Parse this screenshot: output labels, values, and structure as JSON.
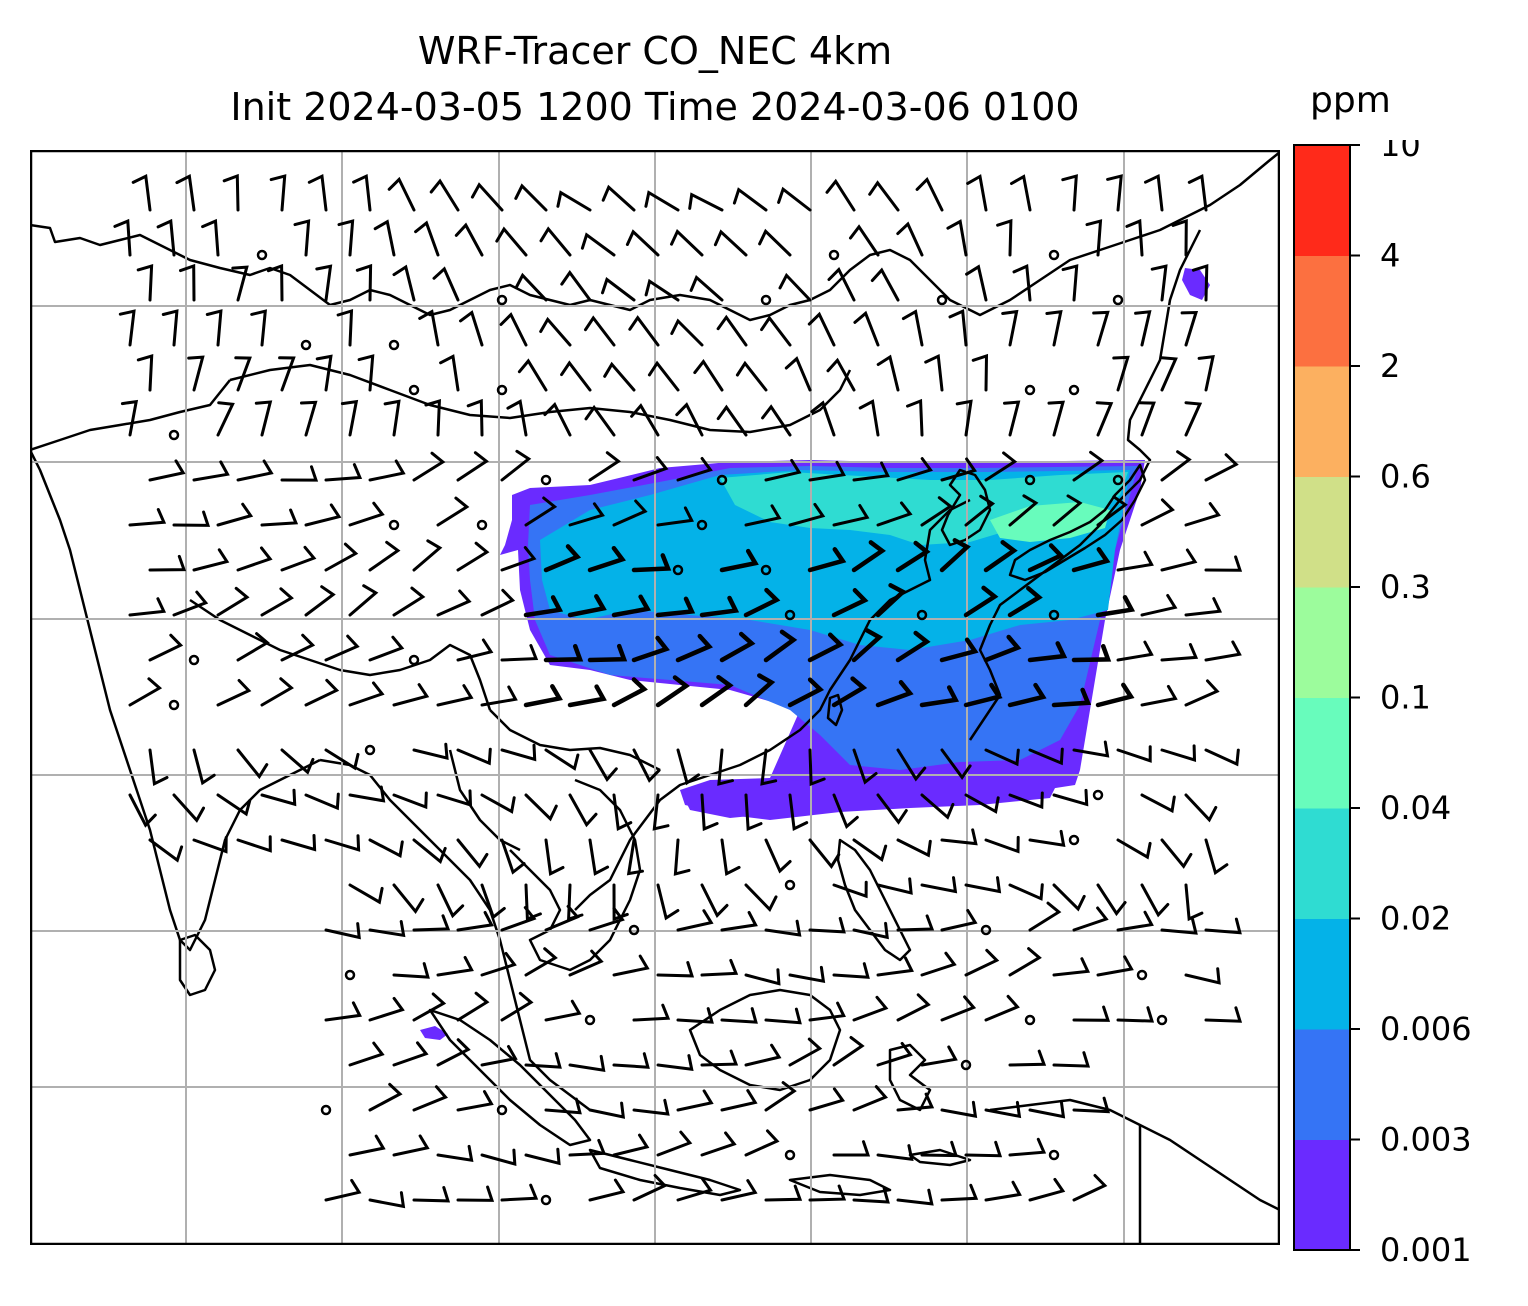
{
  "title": {
    "line1": "WRF-Tracer CO_NEC 4km",
    "line2": "Init 2024-03-05 1200 Time 2024-03-06 0100"
  },
  "colorbar": {
    "unit": "ppm",
    "levels": [
      "0.001",
      "0.003",
      "0.006",
      "0.02",
      "0.04",
      "0.1",
      "0.3",
      "0.6",
      "2",
      "4",
      "10"
    ],
    "colors": [
      "#6a2bff",
      "#3574f5",
      "#04b2e8",
      "#2fdcd2",
      "#68fcbc",
      "#9cfc9c",
      "#d0e088",
      "#fcb060",
      "#fc7040",
      "#ff2a1a"
    ]
  },
  "map": {
    "projection_box_grid": {
      "vertical_lines": 7,
      "horizontal_lines": 6
    },
    "plume_colors": {
      "low": "#6a2bff",
      "mid": "#3574f5",
      "main": "#04b2e8",
      "high": "#2fdcd2",
      "peak": "#68fcbc"
    }
  }
}
